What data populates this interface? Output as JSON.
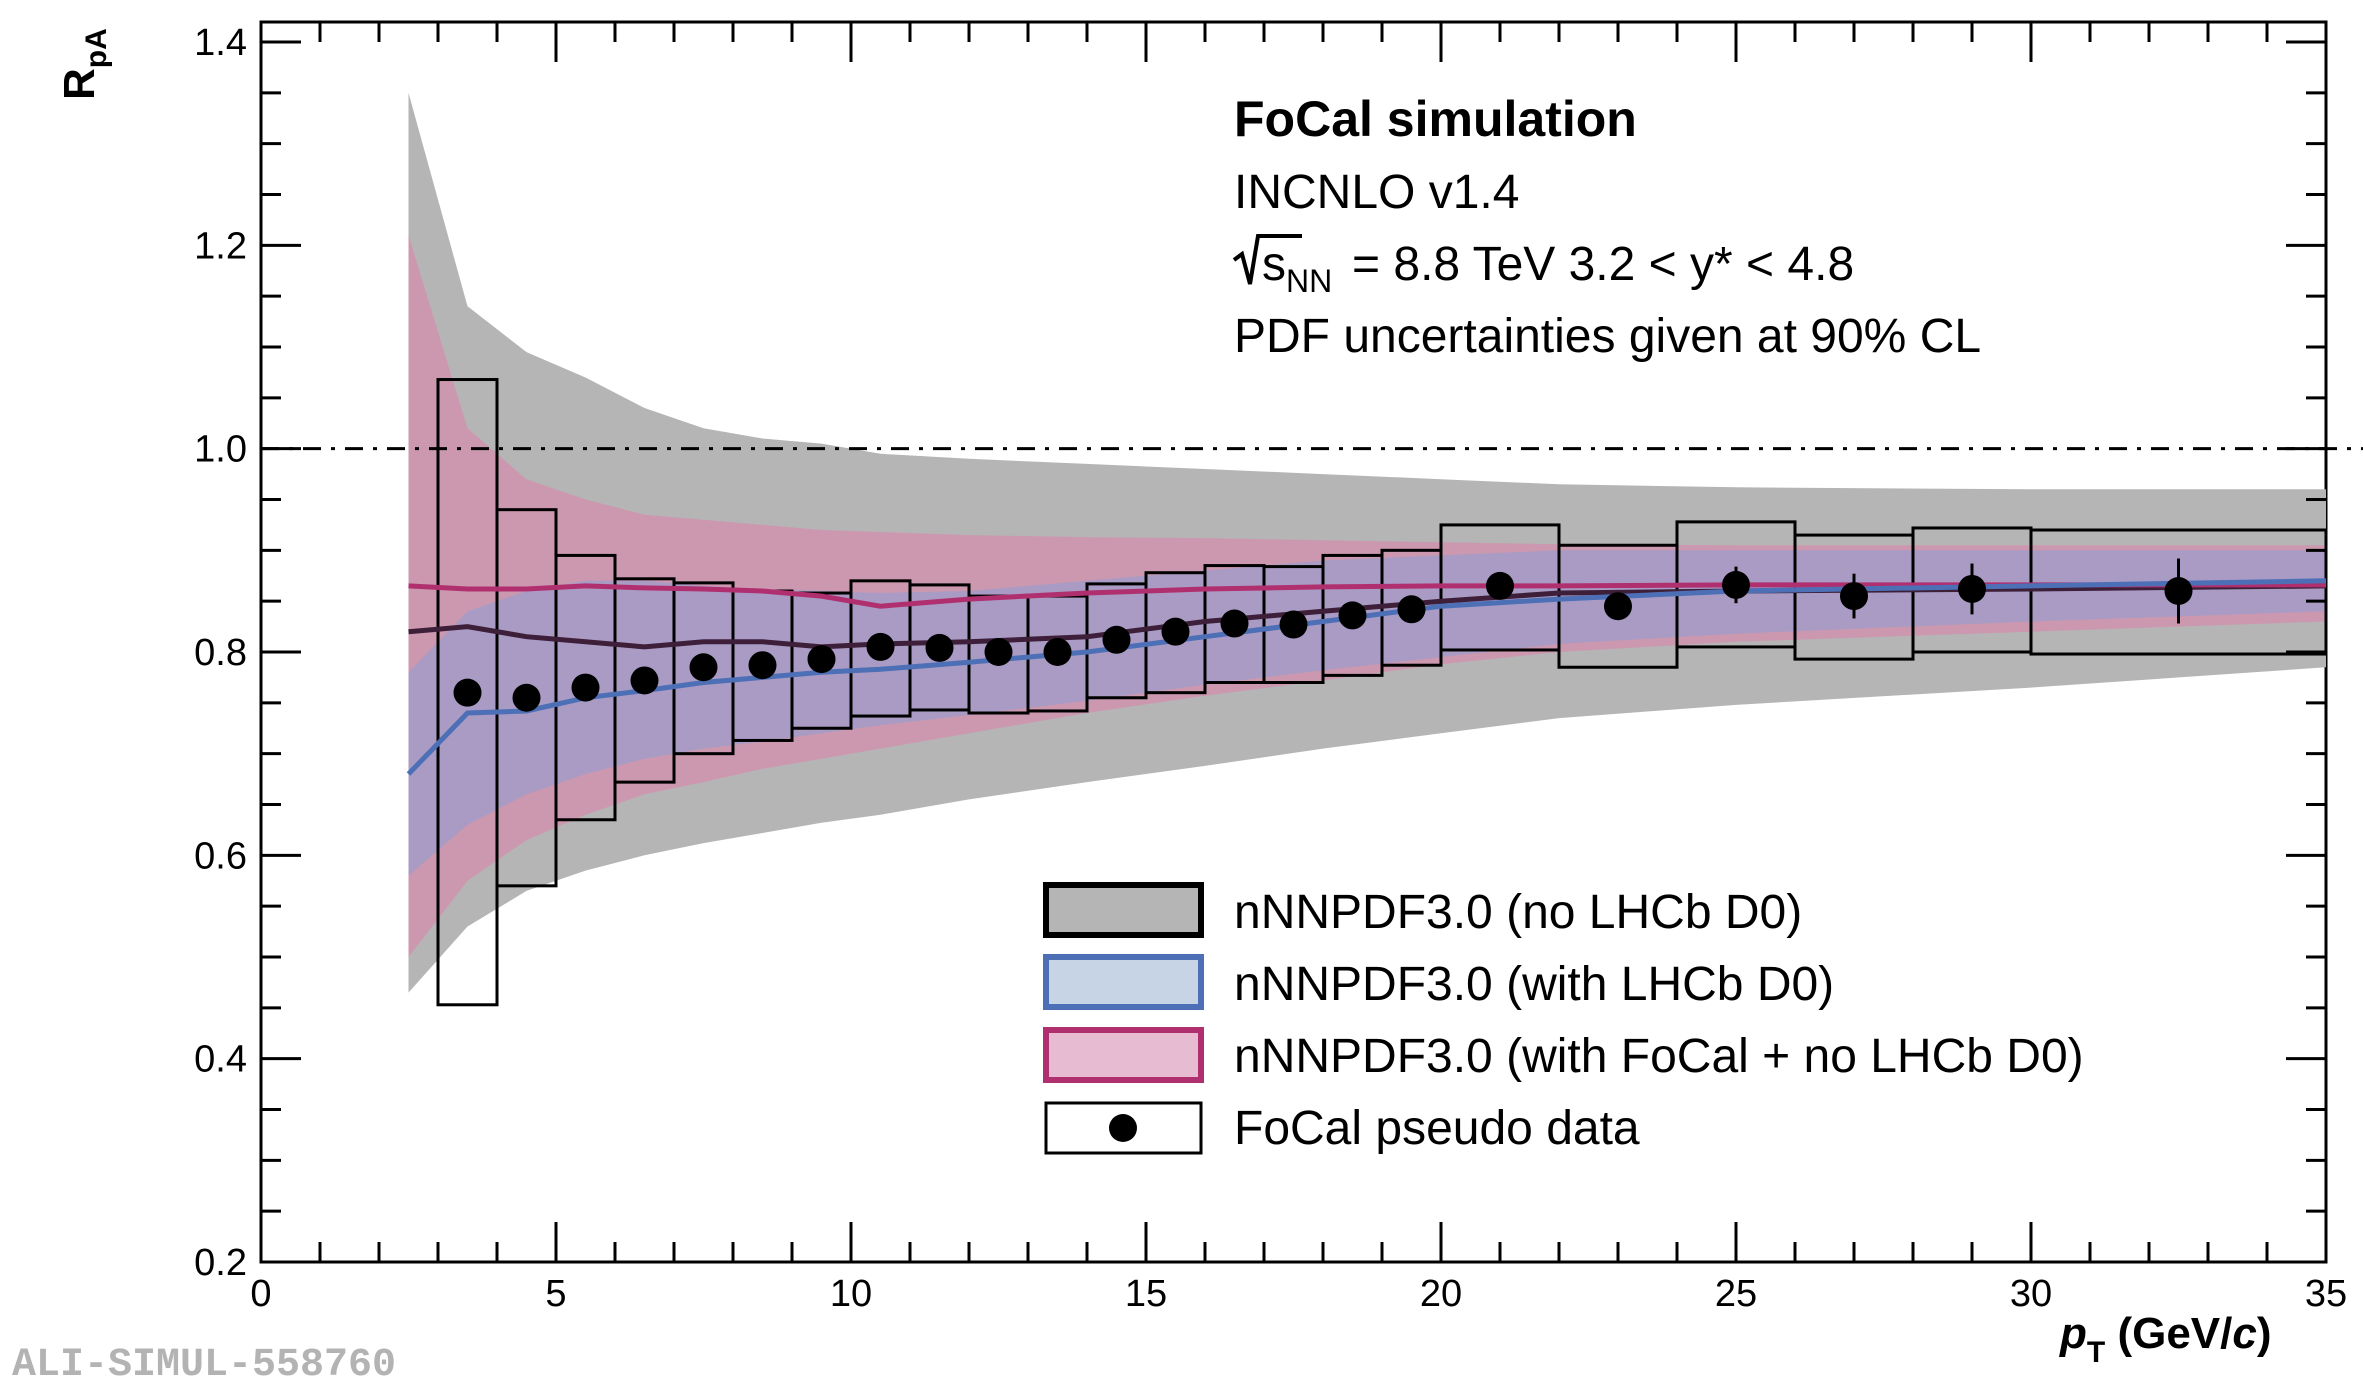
{
  "colors": {
    "no_lhcb_fill": "#b5b5b5",
    "no_lhcb_line": "#3d1f3a",
    "with_lhcb_fill": "#8d9ed6",
    "with_lhcb_line": "#4d6fb6",
    "focal_fill": "#d48fad",
    "focal_line": "#b0306f",
    "data": "#000000"
  },
  "watermark": "ALI-SIMUL-558760",
  "chart_data": {
    "type": "scatter",
    "title": "FoCal simulation",
    "xlabel": "p_T (GeV/c)",
    "ylabel": "R_pA",
    "xlim": [
      0,
      35
    ],
    "ylim": [
      0.2,
      1.42
    ],
    "x_ticks": [
      "0",
      "5",
      "10",
      "15",
      "20",
      "25",
      "30",
      "35"
    ],
    "y_ticks": [
      "0.2",
      "0.4",
      "0.6",
      "0.8",
      "1.0",
      "1.2",
      "1.4"
    ],
    "reference_line": 1.0,
    "annotations": {
      "title": "FoCal simulation",
      "generator": "INCNLO v1.4",
      "energy": "= 8.8 TeV 3.2 < y* < 4.8",
      "pdf_note": "PDF uncertainties given at 90% CL"
    },
    "legend": {
      "position": "bottom-right",
      "entries": [
        {
          "key": "no_lhcb",
          "label": "nNNPDF3.0 (no LHCb D0)"
        },
        {
          "key": "with_lhcb",
          "label": "nNNPDF3.0 (with LHCb D0)"
        },
        {
          "key": "focal",
          "label": "nNNPDF3.0 (with FoCal + no LHCb D0)"
        },
        {
          "key": "pseudo",
          "label": "FoCal pseudo data"
        }
      ]
    },
    "bands": [
      {
        "key": "no_lhcb",
        "name": "nNNPDF3.0 (no LHCb D0)",
        "x": [
          2.5,
          3.5,
          4.5,
          5.5,
          6.5,
          7.5,
          8.5,
          9.5,
          10.5,
          12,
          14,
          16,
          18,
          20,
          22,
          25,
          30,
          35
        ],
        "lower": [
          0.465,
          0.53,
          0.565,
          0.585,
          0.6,
          0.612,
          0.622,
          0.632,
          0.64,
          0.655,
          0.672,
          0.688,
          0.705,
          0.72,
          0.735,
          0.748,
          0.765,
          0.785
        ],
        "upper": [
          1.35,
          1.14,
          1.095,
          1.07,
          1.04,
          1.02,
          1.01,
          1.005,
          0.995,
          0.99,
          0.985,
          0.98,
          0.975,
          0.97,
          0.965,
          0.962,
          0.96,
          0.96
        ],
        "central": [
          0.82,
          0.825,
          0.815,
          0.81,
          0.805,
          0.81,
          0.81,
          0.805,
          0.808,
          0.81,
          0.815,
          0.83,
          0.84,
          0.85,
          0.858,
          0.86,
          0.862,
          0.865
        ]
      },
      {
        "key": "focal",
        "name": "nNNPDF3.0 (with FoCal + no LHCb D0)",
        "x": [
          2.5,
          3.5,
          4.5,
          5.5,
          6.5,
          7.5,
          8.5,
          9.5,
          10.5,
          12,
          14,
          16,
          18,
          20,
          22,
          25,
          30,
          35
        ],
        "lower": [
          0.5,
          0.575,
          0.615,
          0.64,
          0.66,
          0.672,
          0.685,
          0.695,
          0.705,
          0.72,
          0.74,
          0.757,
          0.772,
          0.788,
          0.8,
          0.81,
          0.82,
          0.83
        ],
        "upper": [
          1.21,
          1.02,
          0.97,
          0.95,
          0.935,
          0.93,
          0.925,
          0.92,
          0.918,
          0.915,
          0.913,
          0.912,
          0.91,
          0.908,
          0.906,
          0.905,
          0.905,
          0.905
        ],
        "central": [
          0.865,
          0.862,
          0.862,
          0.865,
          0.863,
          0.862,
          0.86,
          0.855,
          0.845,
          0.852,
          0.858,
          0.862,
          0.864,
          0.865,
          0.865,
          0.866,
          0.866,
          0.866
        ]
      },
      {
        "key": "with_lhcb",
        "name": "nNNPDF3.0 (with LHCb D0)",
        "x": [
          2.5,
          3.5,
          4.5,
          5.5,
          6.5,
          7.5,
          8.5,
          9.5,
          10.5,
          12,
          14,
          16,
          18,
          20,
          22,
          25,
          30,
          35
        ],
        "lower": [
          0.58,
          0.63,
          0.66,
          0.68,
          0.695,
          0.705,
          0.712,
          0.72,
          0.728,
          0.738,
          0.752,
          0.768,
          0.782,
          0.795,
          0.808,
          0.818,
          0.83,
          0.84
        ],
        "upper": [
          0.78,
          0.84,
          0.86,
          0.87,
          0.87,
          0.865,
          0.862,
          0.86,
          0.858,
          0.86,
          0.87,
          0.88,
          0.89,
          0.895,
          0.9,
          0.9,
          0.9,
          0.9
        ],
        "central": [
          0.68,
          0.74,
          0.742,
          0.755,
          0.762,
          0.77,
          0.775,
          0.78,
          0.783,
          0.79,
          0.8,
          0.815,
          0.83,
          0.845,
          0.852,
          0.86,
          0.865,
          0.87
        ]
      }
    ],
    "pseudo_data": {
      "name": "FoCal pseudo data",
      "x": [
        3.5,
        4.5,
        5.5,
        6.5,
        7.5,
        8.5,
        9.5,
        10.5,
        11.5,
        12.5,
        13.5,
        14.5,
        15.5,
        16.5,
        17.5,
        18.5,
        19.5,
        21,
        23,
        25,
        27,
        29,
        32.5
      ],
      "y": [
        0.76,
        0.755,
        0.765,
        0.772,
        0.785,
        0.787,
        0.793,
        0.805,
        0.804,
        0.8,
        0.8,
        0.812,
        0.82,
        0.828,
        0.827,
        0.836,
        0.842,
        0.865,
        0.845,
        0.866,
        0.855,
        0.862,
        0.86
      ],
      "yerr": [
        0.008,
        0.008,
        0.008,
        0.008,
        0.008,
        0.008,
        0.008,
        0.008,
        0.008,
        0.008,
        0.008,
        0.008,
        0.008,
        0.008,
        0.008,
        0.008,
        0.008,
        0.012,
        0.012,
        0.018,
        0.022,
        0.025,
        0.032
      ],
      "xlow": [
        3,
        4,
        5,
        6,
        7,
        8,
        9,
        10,
        11,
        12,
        13,
        14,
        15,
        16,
        17,
        18,
        19,
        20,
        22,
        24,
        26,
        28,
        30
      ],
      "xhigh": [
        4,
        5,
        6,
        7,
        8,
        9,
        10,
        11,
        12,
        13,
        14,
        15,
        16,
        17,
        18,
        19,
        20,
        22,
        24,
        26,
        28,
        30,
        35
      ],
      "sys_low": [
        0.453,
        0.57,
        0.635,
        0.672,
        0.7,
        0.713,
        0.725,
        0.737,
        0.743,
        0.74,
        0.742,
        0.755,
        0.76,
        0.77,
        0.77,
        0.777,
        0.787,
        0.802,
        0.785,
        0.805,
        0.793,
        0.8,
        0.798
      ],
      "sys_high": [
        1.068,
        0.94,
        0.895,
        0.872,
        0.868,
        0.86,
        0.858,
        0.87,
        0.866,
        0.855,
        0.855,
        0.867,
        0.878,
        0.885,
        0.884,
        0.895,
        0.9,
        0.925,
        0.905,
        0.928,
        0.915,
        0.922,
        0.92
      ]
    }
  }
}
